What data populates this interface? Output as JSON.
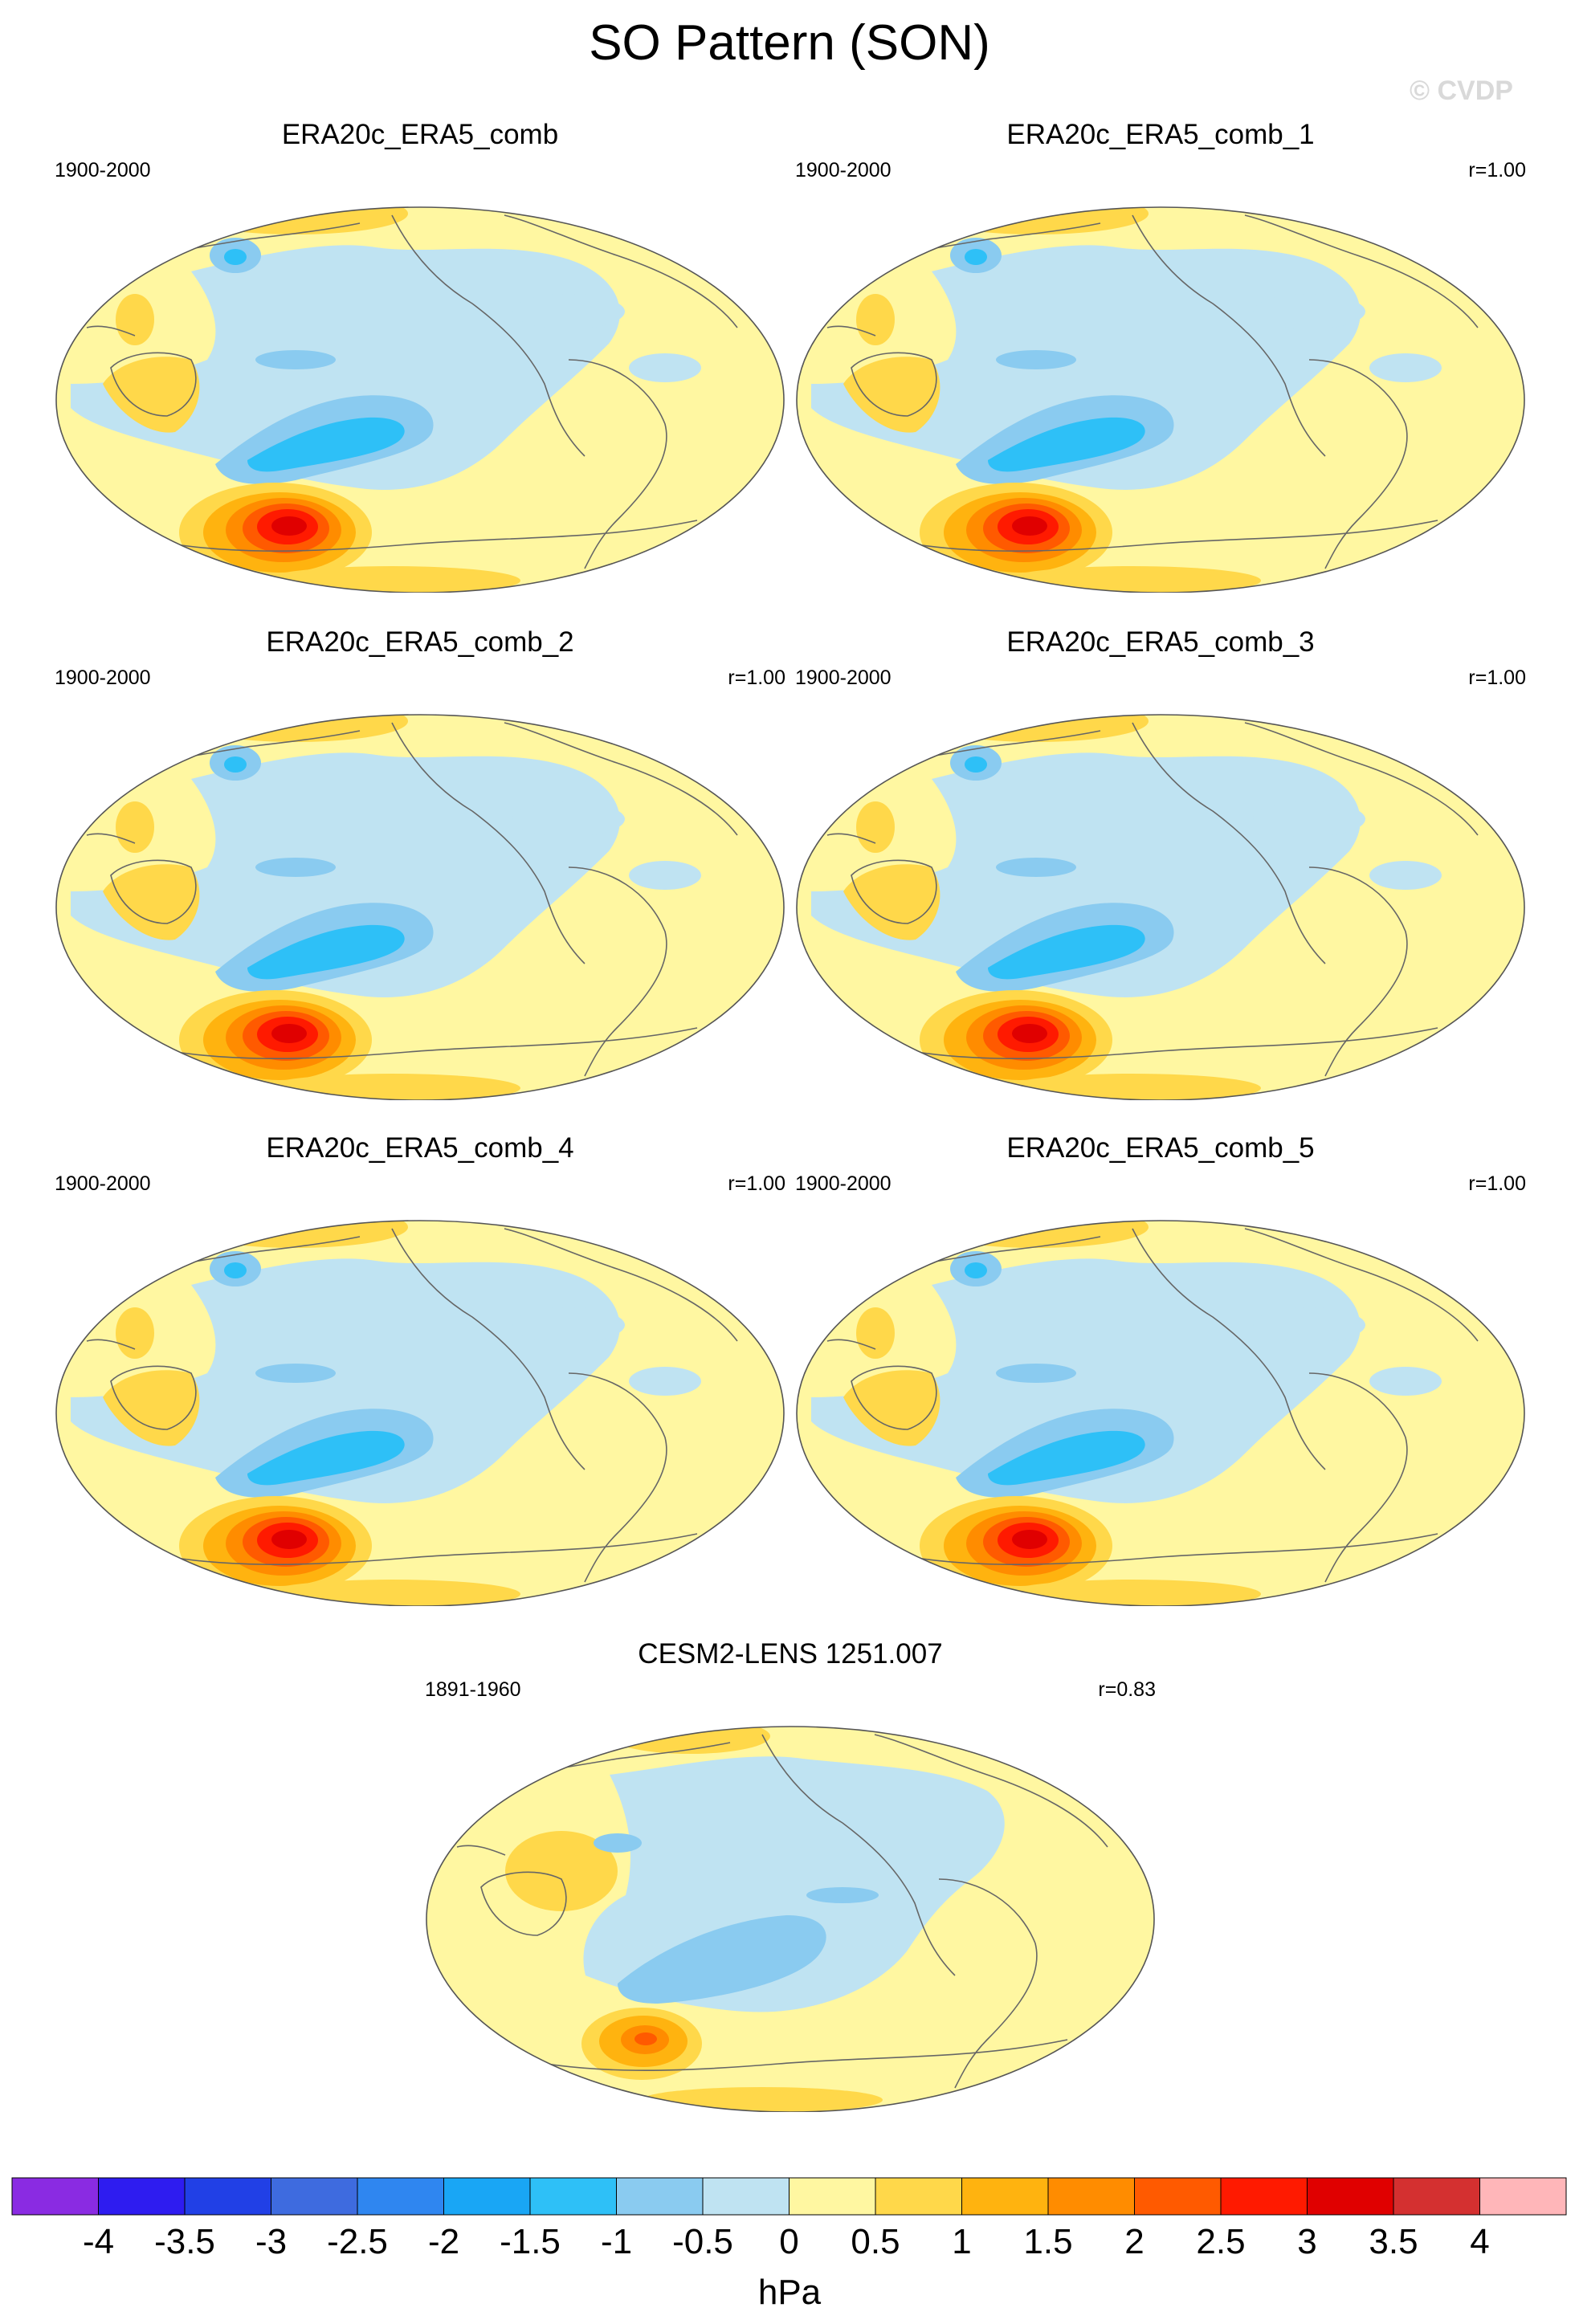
{
  "title": "SO Pattern (SON)",
  "watermark": "© CVDP",
  "panels": [
    {
      "title": "ERA20c_ERA5_comb",
      "period": "1900-2000",
      "r": "",
      "variant": 0
    },
    {
      "title": "ERA20c_ERA5_comb_1",
      "period": "1900-2000",
      "r": "r=1.00",
      "variant": 0
    },
    {
      "title": "ERA20c_ERA5_comb_2",
      "period": "1900-2000",
      "r": "r=1.00",
      "variant": 0
    },
    {
      "title": "ERA20c_ERA5_comb_3",
      "period": "1900-2000",
      "r": "r=1.00",
      "variant": 0
    },
    {
      "title": "ERA20c_ERA5_comb_4",
      "period": "1900-2000",
      "r": "r=1.00",
      "variant": 0
    },
    {
      "title": "ERA20c_ERA5_comb_5",
      "period": "1900-2000",
      "r": "r=1.00",
      "variant": 0
    },
    {
      "title": "CESM2-LENS 1251.007",
      "period": "1891-1960",
      "r": "r=0.83",
      "variant": 1
    }
  ],
  "colorbar": {
    "colors": [
      "#8a2be2",
      "#2e1cf0",
      "#2140e6",
      "#3e6bdf",
      "#2f86f0",
      "#19a6f5",
      "#2ec0f7",
      "#8acbf0",
      "#bfe3f2",
      "#fff7a1",
      "#ffd84a",
      "#ffb30f",
      "#ff8c00",
      "#ff5a00",
      "#ff1a00",
      "#e00000",
      "#d43030",
      "#ffb6b9"
    ],
    "labels": [
      "-4",
      "-3.5",
      "-3",
      "-2.5",
      "-2",
      "-1.5",
      "-1",
      "-0.5",
      "0",
      "0.5",
      "1",
      "1.5",
      "2",
      "2.5",
      "3",
      "3.5",
      "4"
    ],
    "units": "hPa"
  }
}
